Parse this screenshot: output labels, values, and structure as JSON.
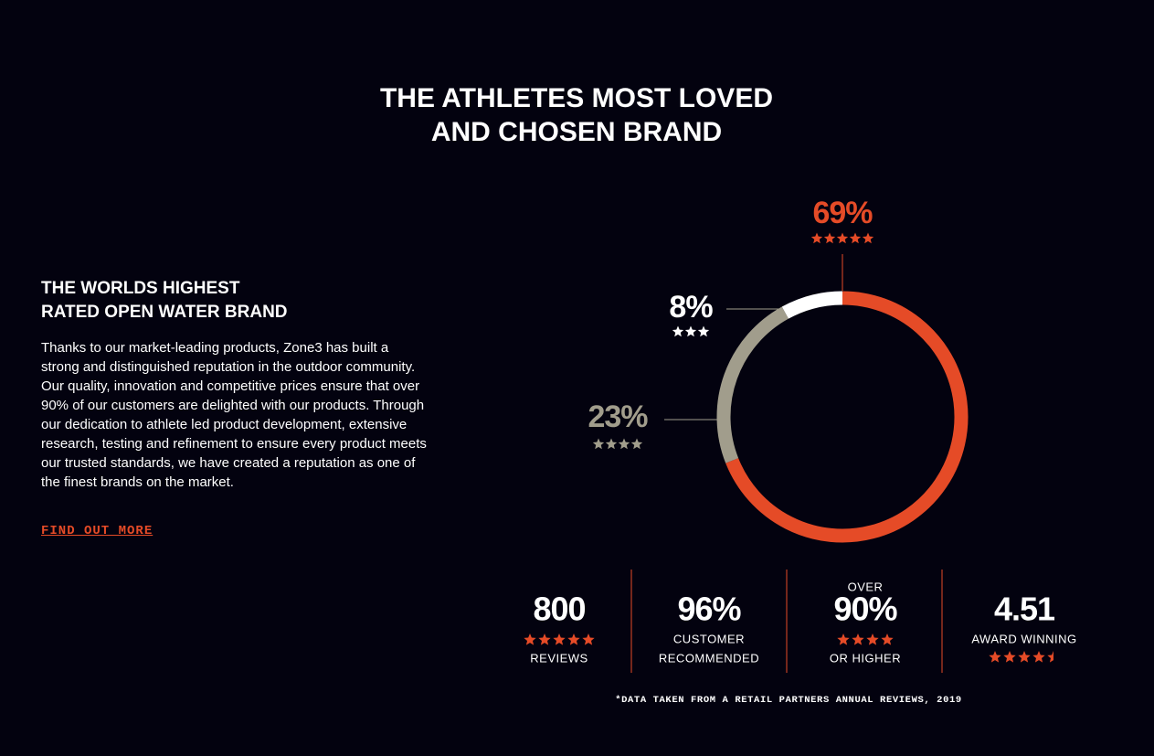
{
  "header": {
    "title_lines": [
      "THE ATHLETES MOST LOVED",
      "AND CHOSEN BRAND"
    ]
  },
  "intro": {
    "heading_lines": [
      "THE WORLDS HIGHEST",
      "RATED OPEN WATER BRAND"
    ],
    "body": "Thanks to our market-leading products, Zone3 has built a strong and distinguished reputation in the outdoor community. Our quality, innovation and competitive prices ensure that over 90% of our customers are delighted with our products. Through our dedication to athlete led product development, extensive research, testing and refinement to ensure every product meets our trusted standards, we have created a reputation as one of the finest brands on the market.",
    "link": "FIND OUT MORE"
  },
  "chart_data": {
    "type": "donut",
    "values": [
      69,
      23,
      8
    ],
    "value_labels": [
      "69%",
      "23%",
      "8%"
    ],
    "stars": [
      5,
      4,
      3
    ],
    "colors": [
      "#e54b27",
      "#a19d8c",
      "#ffffff"
    ]
  },
  "stats": [
    {
      "value": "800",
      "stars": 5,
      "caption_lines": [
        "REVIEWS"
      ]
    },
    {
      "value": "96%",
      "caption_lines": [
        "CUSTOMER",
        "RECOMMENDED"
      ]
    },
    {
      "prefix": "OVER",
      "value": "90%",
      "stars": 4,
      "caption_lines": [
        "OR HIGHER"
      ]
    },
    {
      "value": "4.51",
      "caption_lines": [
        "AWARD WINNING"
      ],
      "stars": 4.5
    }
  ],
  "footnote": "*DATA TAKEN FROM A RETAIL PARTNERS ANNUAL REVIEWS, 2019"
}
